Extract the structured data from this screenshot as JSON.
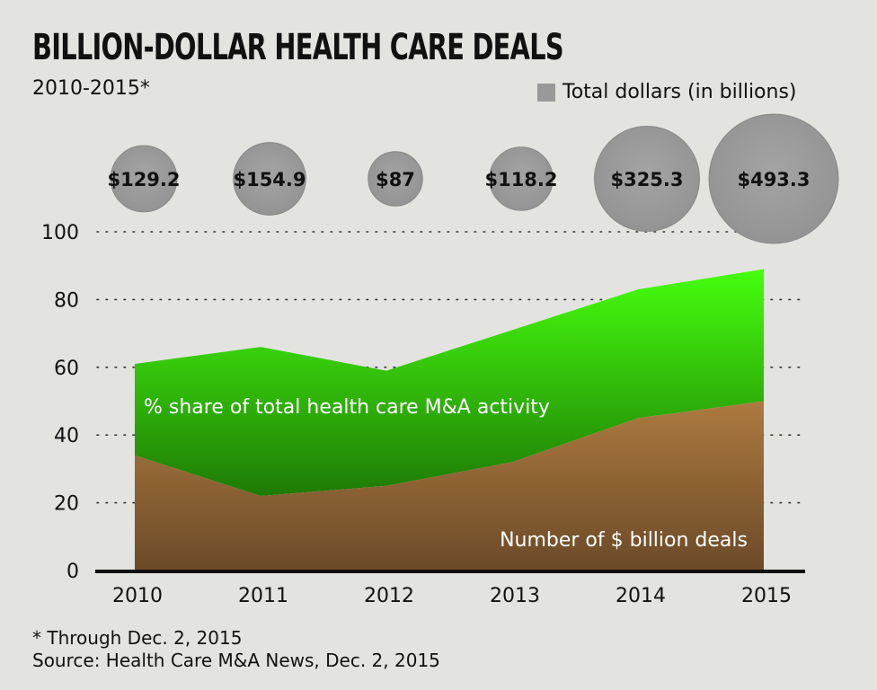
{
  "header": {
    "title": "BILLION-DOLLAR HEALTH CARE DEALS",
    "subtitle": "2010-2015*"
  },
  "legend": {
    "bubble_label": "Total dollars (in billions)"
  },
  "footnotes": {
    "note": "* Through Dec. 2, 2015",
    "source": "Source: Health Care M&A News, Dec. 2, 2015"
  },
  "colors": {
    "background": "#e3e4e0",
    "share_area": "#3fe012",
    "deals_area": "#9a6c3a",
    "bubble": "#9b9b9b"
  },
  "chart_data": {
    "type": "area",
    "categories": [
      "2010",
      "2011",
      "2012",
      "2013",
      "2014",
      "2015"
    ],
    "ylim": [
      0,
      100
    ],
    "yticks": [
      0,
      20,
      40,
      60,
      80,
      100
    ],
    "grid": "dotted",
    "series": [
      {
        "name": "Number of $ billion deals",
        "values": [
          34,
          22,
          25,
          32,
          45,
          50
        ]
      },
      {
        "name": "% share of total health care M&A activity",
        "values": [
          61,
          66,
          59,
          71,
          83,
          89
        ]
      }
    ],
    "bubbles": {
      "name": "Total dollars (in billions)",
      "values": [
        129.2,
        154.9,
        87,
        118.2,
        325.3,
        493.3
      ],
      "labels": [
        "$129.2",
        "$154.9",
        "$87",
        "$118.2",
        "$325.3",
        "$493.3"
      ]
    }
  }
}
